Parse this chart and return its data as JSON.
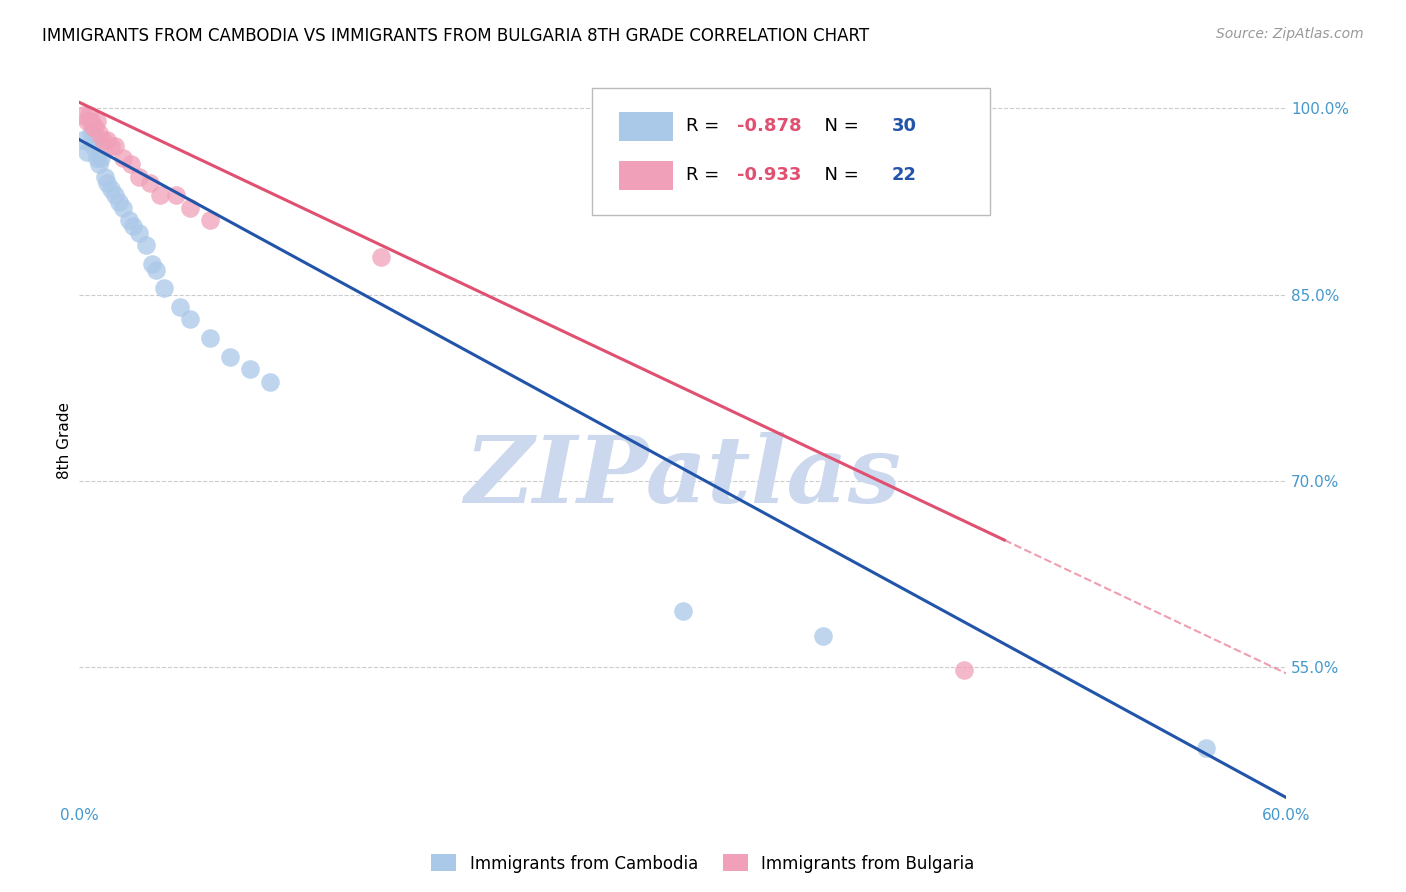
{
  "title": "IMMIGRANTS FROM CAMBODIA VS IMMIGRANTS FROM BULGARIA 8TH GRADE CORRELATION CHART",
  "source": "Source: ZipAtlas.com",
  "ylabel_left": "8th Grade",
  "legend_labels": [
    "Immigrants from Cambodia",
    "Immigrants from Bulgaria"
  ],
  "R_cambodia": -0.878,
  "N_cambodia": 30,
  "R_bulgaria": -0.933,
  "N_bulgaria": 22,
  "color_cambodia": "#aac8e8",
  "color_bulgaria": "#f0a0b8",
  "line_color_cambodia": "#2255aa",
  "line_color_bulgaria": "#e05070",
  "xlim": [
    0.0,
    0.6
  ],
  "ylim": [
    0.44,
    1.025
  ],
  "yticks_right": [
    1.0,
    0.85,
    0.7,
    0.55
  ],
  "ytick_right_labels": [
    "100.0%",
    "85.0%",
    "70.0%",
    "55.0%"
  ],
  "xticks": [
    0.0,
    0.1,
    0.2,
    0.3,
    0.4,
    0.5,
    0.6
  ],
  "xtick_labels": [
    "0.0%",
    "",
    "",
    "",
    "",
    "",
    "60.0%"
  ],
  "background_color": "#ffffff",
  "watermark": "ZIPatlas",
  "watermark_color": "#ccd8ee",
  "scatter_cambodia_x": [
    0.002,
    0.004,
    0.006,
    0.007,
    0.008,
    0.009,
    0.01,
    0.011,
    0.013,
    0.014,
    0.016,
    0.018,
    0.02,
    0.022,
    0.025,
    0.027,
    0.03,
    0.033,
    0.036,
    0.038,
    0.042,
    0.05,
    0.055,
    0.065,
    0.075,
    0.085,
    0.095,
    0.3,
    0.37,
    0.56
  ],
  "scatter_cambodia_y": [
    0.975,
    0.965,
    0.98,
    0.97,
    0.975,
    0.96,
    0.955,
    0.96,
    0.945,
    0.94,
    0.935,
    0.93,
    0.925,
    0.92,
    0.91,
    0.905,
    0.9,
    0.89,
    0.875,
    0.87,
    0.855,
    0.84,
    0.83,
    0.815,
    0.8,
    0.79,
    0.78,
    0.595,
    0.575,
    0.485
  ],
  "scatter_bulgaria_x": [
    0.002,
    0.004,
    0.005,
    0.006,
    0.007,
    0.008,
    0.009,
    0.01,
    0.012,
    0.014,
    0.016,
    0.018,
    0.022,
    0.026,
    0.03,
    0.035,
    0.04,
    0.048,
    0.055,
    0.065,
    0.15,
    0.44
  ],
  "scatter_bulgaria_y": [
    0.995,
    0.99,
    0.995,
    0.99,
    0.985,
    0.985,
    0.99,
    0.98,
    0.975,
    0.975,
    0.97,
    0.97,
    0.96,
    0.955,
    0.945,
    0.94,
    0.93,
    0.93,
    0.92,
    0.91,
    0.88,
    0.548
  ],
  "line_cambodia_x0": 0.0,
  "line_cambodia_y0": 0.975,
  "line_cambodia_x1": 0.6,
  "line_cambodia_y1": 0.445,
  "line_bulgaria_x0": 0.0,
  "line_bulgaria_y0": 1.005,
  "line_bulgaria_x1": 0.6,
  "line_bulgaria_y1": 0.545,
  "line_bulgaria_solid_end": 0.46
}
